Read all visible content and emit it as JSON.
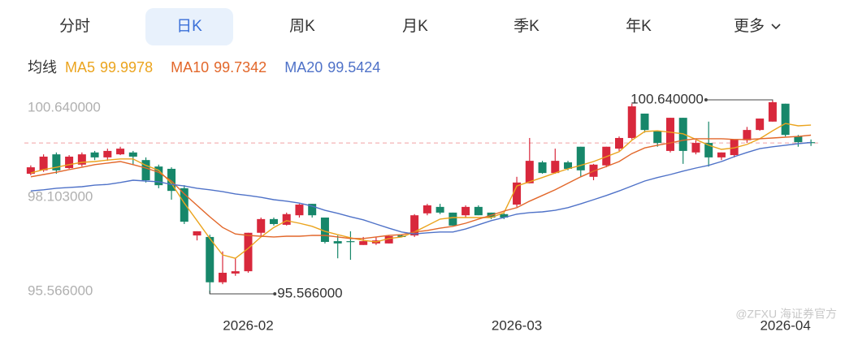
{
  "tabs": [
    "分时",
    "日K",
    "周K",
    "月K",
    "季K",
    "年K",
    "更多"
  ],
  "active_tab": 1,
  "watermark": "@ZFXU 海证券官方",
  "chart_data": {
    "type": "candlestick",
    "legend_title": "均线",
    "up_color": "#d8283c",
    "down_color": "#17876a",
    "categories": [
      null,
      null,
      null,
      null,
      null,
      null,
      null,
      null,
      null,
      null,
      null,
      null,
      null,
      null,
      null,
      null,
      null,
      "2026-02",
      null,
      null,
      null,
      null,
      null,
      null,
      null,
      null,
      null,
      null,
      null,
      null,
      null,
      null,
      null,
      null,
      null,
      null,
      null,
      null,
      "2026-03",
      null,
      null,
      null,
      null,
      null,
      null,
      null,
      null,
      null,
      null,
      null,
      null,
      null,
      null,
      null,
      null,
      null,
      null,
      null,
      null,
      "2026-04",
      null,
      null
    ],
    "open": [
      98.72,
      98.81,
      99.23,
      98.87,
      98.96,
      99.28,
      99.15,
      99.23,
      99.28,
      99.08,
      98.91,
      98.85,
      98.34,
      97.1,
      97.06,
      95.87,
      96.1,
      96.16,
      97.17,
      97.53,
      97.38,
      97.63,
      97.93,
      97.57,
      96.95,
      96.95,
      96.85,
      96.89,
      96.89,
      97.1,
      97.1,
      97.68,
      97.85,
      97.7,
      97.63,
      97.85,
      97.7,
      97.66,
      97.91,
      98.47,
      99.02,
      98.74,
      99.02,
      99.43,
      98.64,
      98.94,
      99.38,
      99.66,
      100.3,
      99.85,
      99.32,
      100.19,
      99.28,
      99.53,
      99.15,
      99.21,
      99.6,
      99.87,
      100.09,
      100.56,
      99.7,
      99.55
    ],
    "close": [
      98.89,
      99.17,
      98.81,
      99.17,
      99.23,
      99.15,
      99.32,
      99.38,
      99.17,
      98.55,
      98.42,
      98.27,
      97.46,
      97.21,
      95.87,
      96.12,
      96.16,
      97.17,
      97.53,
      97.4,
      97.66,
      97.91,
      97.63,
      96.93,
      96.89,
      96.93,
      96.95,
      96.97,
      97.08,
      97.06,
      97.63,
      97.89,
      97.7,
      97.36,
      97.85,
      97.63,
      97.57,
      97.57,
      98.49,
      99.06,
      98.74,
      99.06,
      98.85,
      98.81,
      98.96,
      99.43,
      99.66,
      100.49,
      99.87,
      99.53,
      100.19,
      99.32,
      99.53,
      99.15,
      99.28,
      99.62,
      99.87,
      100.17,
      100.6,
      99.74,
      99.55,
      99.53
    ],
    "low": [
      98.68,
      98.77,
      98.72,
      98.85,
      98.91,
      99.08,
      99.06,
      99.21,
      98.96,
      98.49,
      98.34,
      98.04,
      97.4,
      96.97,
      95.566,
      95.82,
      96.04,
      96.12,
      97.08,
      97.36,
      97.36,
      97.57,
      97.57,
      96.89,
      96.5,
      96.46,
      96.85,
      96.85,
      96.89,
      97.06,
      97.06,
      97.63,
      97.66,
      97.36,
      97.57,
      97.63,
      97.53,
      97.53,
      97.85,
      98.47,
      98.72,
      98.72,
      98.81,
      98.64,
      98.55,
      98.89,
      99.32,
      99.62,
      99.8,
      99.43,
      99.28,
      98.98,
      99.23,
      98.91,
      99.08,
      99.15,
      99.53,
      99.85,
      100.09,
      99.7,
      99.43,
      99.45
    ],
    "high": [
      98.94,
      99.23,
      99.28,
      99.21,
      99.28,
      99.32,
      99.38,
      99.43,
      99.32,
      99.15,
      98.96,
      98.89,
      98.42,
      97.21,
      97.12,
      96.68,
      96.5,
      97.17,
      97.57,
      97.57,
      97.7,
      97.93,
      97.93,
      97.57,
      97.1,
      97.21,
      97.06,
      97.06,
      97.1,
      97.12,
      97.66,
      97.93,
      97.93,
      97.7,
      97.89,
      97.89,
      97.7,
      97.68,
      98.64,
      99.66,
      99.06,
      99.38,
      99.06,
      99.43,
      98.98,
      99.43,
      99.7,
      100.56,
      100.3,
      99.85,
      100.19,
      100.19,
      99.6,
      100.09,
      99.28,
      99.62,
      99.95,
      100.17,
      100.64,
      100.56,
      99.74,
      99.62
    ],
    "series": [
      {
        "name": "MA5",
        "color": "#eba41e",
        "values": [
          98.74,
          98.83,
          98.89,
          98.96,
          99.02,
          99.04,
          99.08,
          99.11,
          99.11,
          98.94,
          98.81,
          98.47,
          97.95,
          97.49,
          97.02,
          96.59,
          96.5,
          96.76,
          97.06,
          97.31,
          97.49,
          97.42,
          97.34,
          97.21,
          97.12,
          97.04,
          96.97,
          96.93,
          97.02,
          97.06,
          97.19,
          97.36,
          97.53,
          97.57,
          97.57,
          97.57,
          97.57,
          97.7,
          98.4,
          98.51,
          98.62,
          98.74,
          98.85,
          98.94,
          99.04,
          99.17,
          99.3,
          99.6,
          99.83,
          99.85,
          99.81,
          99.77,
          99.62,
          99.47,
          99.36,
          99.4,
          99.49,
          99.64,
          99.85,
          100.04,
          99.98,
          99.9978
        ]
      },
      {
        "name": "MA10",
        "color": "#e2672a",
        "values": [
          98.64,
          98.7,
          98.76,
          98.83,
          98.89,
          98.96,
          99.0,
          99.04,
          98.96,
          98.87,
          98.76,
          98.53,
          98.19,
          97.89,
          97.59,
          97.31,
          97.14,
          97.1,
          97.08,
          97.06,
          97.08,
          97.08,
          97.1,
          97.1,
          97.06,
          97.02,
          97.02,
          97.06,
          97.1,
          97.12,
          97.19,
          97.23,
          97.29,
          97.34,
          97.42,
          97.53,
          97.63,
          97.74,
          97.83,
          98.0,
          98.15,
          98.3,
          98.47,
          98.64,
          98.79,
          98.91,
          99.04,
          99.25,
          99.4,
          99.47,
          99.53,
          99.6,
          99.64,
          99.64,
          99.64,
          99.62,
          99.62,
          99.64,
          99.66,
          99.68,
          99.7,
          99.7342
        ]
      },
      {
        "name": "MA20",
        "color": "#4f72c8",
        "values": [
          98.27,
          98.3,
          98.34,
          98.36,
          98.38,
          98.42,
          98.44,
          98.49,
          98.55,
          98.53,
          98.51,
          98.44,
          98.4,
          98.34,
          98.3,
          98.25,
          98.19,
          98.15,
          98.1,
          98.04,
          98.0,
          97.95,
          97.87,
          97.76,
          97.68,
          97.59,
          97.51,
          97.4,
          97.29,
          97.19,
          97.14,
          97.17,
          97.19,
          97.19,
          97.27,
          97.38,
          97.49,
          97.57,
          97.66,
          97.7,
          97.72,
          97.76,
          97.83,
          97.93,
          98.04,
          98.15,
          98.27,
          98.4,
          98.53,
          98.62,
          98.7,
          98.79,
          98.87,
          98.94,
          99.04,
          99.17,
          99.28,
          99.38,
          99.43,
          99.47,
          99.51,
          99.5424
        ]
      }
    ],
    "ylim": [
      95.566,
      100.64
    ],
    "yticks": [
      {
        "value": 100.64,
        "label": "100.640000"
      },
      {
        "value": 98.103,
        "label": "98.103000"
      },
      {
        "value": 95.566,
        "label": "95.566000"
      }
    ],
    "grid": false,
    "ref_line": {
      "value": 99.53,
      "color": "#f0a0a4"
    },
    "annotations": [
      {
        "text": "100.640000",
        "value": 100.64
      },
      {
        "text": "95.566000",
        "value": 95.566
      }
    ]
  }
}
